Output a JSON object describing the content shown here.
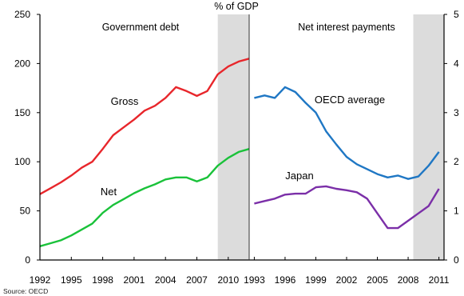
{
  "header": "% of GDP",
  "source": "Source: OECD",
  "colors": {
    "shade": "#dcdcdc",
    "axis": "#000000",
    "divider": "#333333"
  },
  "chart_data": [
    {
      "type": "line",
      "title": "Government debt",
      "xlim": [
        1992,
        2012
      ],
      "ylim": [
        0,
        250
      ],
      "yticks": [
        0,
        50,
        100,
        150,
        200,
        250
      ],
      "xticks": [
        1992,
        1995,
        1998,
        2001,
        2004,
        2007,
        2010
      ],
      "shaded_from": 2009,
      "grid": false,
      "series": [
        {
          "name": "Gross",
          "color": "#e8262b",
          "x": [
            1992,
            1993,
            1994,
            1995,
            1996,
            1997,
            1998,
            1999,
            2000,
            2001,
            2002,
            2003,
            2004,
            2005,
            2006,
            2007,
            2008,
            2009,
            2010,
            2011,
            2012
          ],
          "y": [
            67,
            73,
            79,
            86,
            94,
            100,
            113,
            127,
            135,
            143,
            152,
            157,
            165,
            176,
            172,
            167,
            172,
            189,
            197,
            202,
            205
          ]
        },
        {
          "name": "Net",
          "color": "#1ac23a",
          "x": [
            1992,
            1993,
            1994,
            1995,
            1996,
            1997,
            1998,
            1999,
            2000,
            2001,
            2002,
            2003,
            2004,
            2005,
            2006,
            2007,
            2008,
            2009,
            2010,
            2011,
            2012
          ],
          "y": [
            14,
            17,
            20,
            25,
            31,
            37,
            48,
            56,
            62,
            68,
            73,
            77,
            82,
            84,
            84,
            80,
            84,
            96,
            104,
            110,
            113
          ]
        }
      ]
    },
    {
      "type": "line",
      "title": "Net interest payments",
      "xlim": [
        1992.5,
        2011.5
      ],
      "ylim": [
        0,
        5
      ],
      "yticks": [
        0,
        1,
        2,
        3,
        4,
        5
      ],
      "xticks": [
        1993,
        1996,
        1999,
        2002,
        2005,
        2008,
        2011
      ],
      "shaded_from": 2008.5,
      "grid": false,
      "series": [
        {
          "name": "OECD average",
          "color": "#1f77c4",
          "x": [
            1993,
            1994,
            1995,
            1996,
            1997,
            1998,
            1999,
            2000,
            2001,
            2002,
            2003,
            2004,
            2005,
            2006,
            2007,
            2008,
            2009,
            2010,
            2011
          ],
          "y": [
            3.3,
            3.35,
            3.3,
            3.52,
            3.42,
            3.2,
            3.0,
            2.62,
            2.35,
            2.1,
            1.95,
            1.85,
            1.75,
            1.68,
            1.72,
            1.65,
            1.7,
            1.92,
            2.2
          ]
        },
        {
          "name": "Japan",
          "color": "#7b2fa8",
          "x": [
            1993,
            1994,
            1995,
            1996,
            1997,
            1998,
            1999,
            2000,
            2001,
            2002,
            2003,
            2004,
            2005,
            2006,
            2007,
            2008,
            2009,
            2010,
            2011
          ],
          "y": [
            1.15,
            1.2,
            1.25,
            1.33,
            1.35,
            1.35,
            1.48,
            1.5,
            1.45,
            1.42,
            1.38,
            1.25,
            0.95,
            0.65,
            0.65,
            0.8,
            0.95,
            1.1,
            1.45
          ]
        }
      ]
    }
  ]
}
